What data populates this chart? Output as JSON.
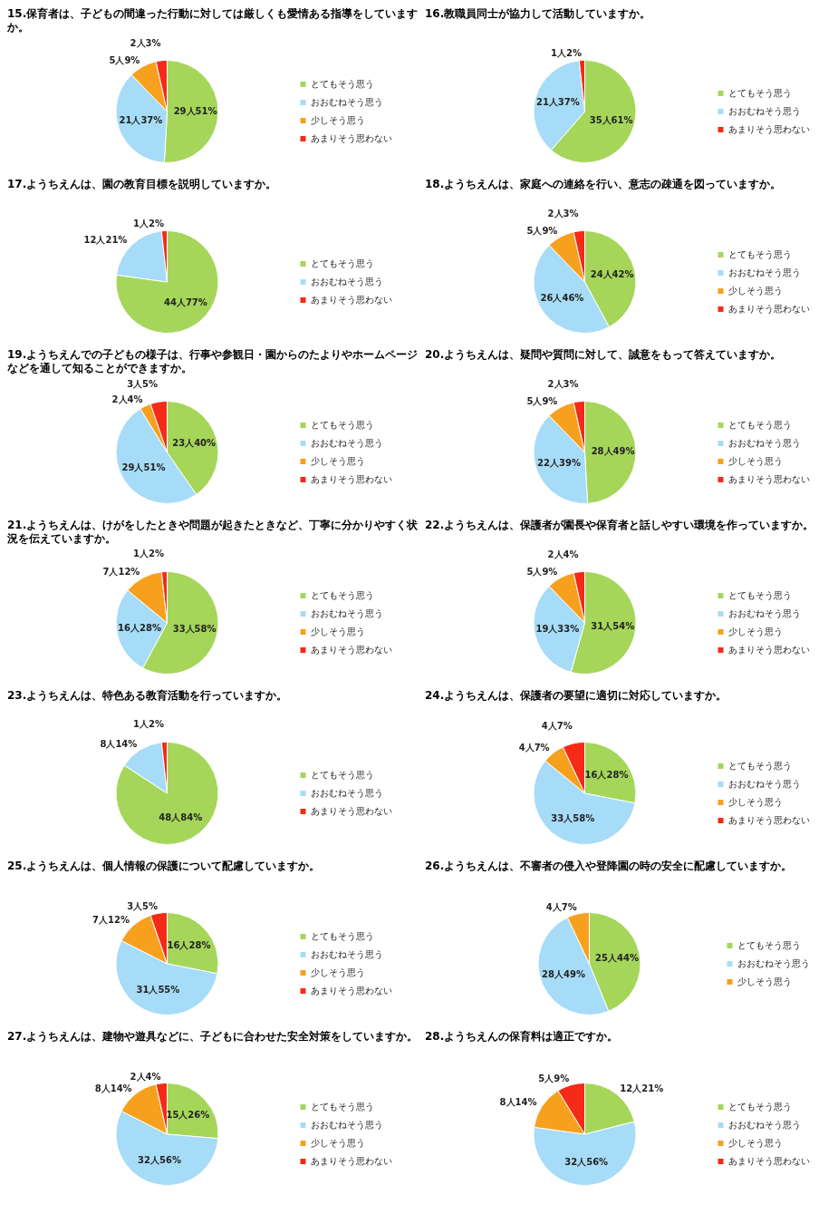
{
  "chart_data": [
    {
      "type": "pie",
      "title": "15.保育者は、子どもの間違った行動に対しては厳しくも愛情ある指導をしていますか。",
      "categories": [
        "とてもそう思う",
        "おおむねそう思う",
        "少しそう思う",
        "あまりそう思わない"
      ],
      "values": [
        29,
        21,
        5,
        2
      ],
      "value_labels": [
        "29人51%",
        "21人37%",
        "5人9%",
        "2人3%"
      ],
      "colors": [
        "#a5d65a",
        "#a6dcf7",
        "#f7a01e",
        "#f52a18"
      ],
      "legend": "right"
    },
    {
      "type": "pie",
      "title": "16.教職員同士が協力して活動していますか。",
      "categories": [
        "とてもそう思う",
        "おおむねそう思う",
        "あまりそう思わない"
      ],
      "values": [
        35,
        21,
        1
      ],
      "value_labels": [
        "35人61%",
        "21人37%",
        "1人2%"
      ],
      "colors": [
        "#a5d65a",
        "#a6dcf7",
        "#f52a18"
      ],
      "legend": "right"
    },
    {
      "type": "pie",
      "title": "17.ようちえんは、園の教育目標を説明していますか。",
      "categories": [
        "とてもそう思う",
        "おおむねそう思う",
        "あまりそう思わない"
      ],
      "values": [
        44,
        12,
        1
      ],
      "value_labels": [
        "44人77%",
        "12人21%",
        "1人2%"
      ],
      "colors": [
        "#a5d65a",
        "#a6dcf7",
        "#f52a18"
      ],
      "legend": "right"
    },
    {
      "type": "pie",
      "title": "18.ようちえんは、家庭への連絡を行い、意志の疎通を図っていますか。",
      "categories": [
        "とてもそう思う",
        "おおむねそう思う",
        "少しそう思う",
        "あまりそう思わない"
      ],
      "values": [
        24,
        26,
        5,
        2
      ],
      "value_labels": [
        "24人42%",
        "26人46%",
        "5人9%",
        "2人3%"
      ],
      "colors": [
        "#a5d65a",
        "#a6dcf7",
        "#f7a01e",
        "#f52a18"
      ],
      "legend": "right"
    },
    {
      "type": "pie",
      "title": "19.ようちえんでの子どもの様子は、行事や参観日・園からのたよりやホームページなどを通して知ることができますか。",
      "categories": [
        "とてもそう思う",
        "おおむねそう思う",
        "少しそう思う",
        "あまりそう思わない"
      ],
      "values": [
        23,
        29,
        2,
        3
      ],
      "value_labels": [
        "23人40%",
        "29人51%",
        "2人4%",
        "3人5%"
      ],
      "colors": [
        "#a5d65a",
        "#a6dcf7",
        "#f7a01e",
        "#f52a18"
      ],
      "legend": "right"
    },
    {
      "type": "pie",
      "title": "20.ようちえんは、疑問や質問に対して、誠意をもって答えていますか。",
      "categories": [
        "とてもそう思う",
        "おおむねそう思う",
        "少しそう思う",
        "あまりそう思わない"
      ],
      "values": [
        28,
        22,
        5,
        2
      ],
      "value_labels": [
        "28人49%",
        "22人39%",
        "5人9%",
        "2人3%"
      ],
      "colors": [
        "#a5d65a",
        "#a6dcf7",
        "#f7a01e",
        "#f52a18"
      ],
      "legend": "right"
    },
    {
      "type": "pie",
      "title": "21.ようちえんは、けがをしたときや問題が起きたときなど、丁寧に分かりやすく状況を伝えていますか。",
      "categories": [
        "とてもそう思う",
        "おおむねそう思う",
        "少しそう思う",
        "あまりそう思わない"
      ],
      "values": [
        33,
        16,
        7,
        1
      ],
      "value_labels": [
        "33人58%",
        "16人28%",
        "7人12%",
        "1人2%"
      ],
      "colors": [
        "#a5d65a",
        "#a6dcf7",
        "#f7a01e",
        "#f52a18"
      ],
      "legend": "right"
    },
    {
      "type": "pie",
      "title": "22.ようちえんは、保護者が園長や保育者と話しやすい環境を作っていますか。",
      "categories": [
        "とてもそう思う",
        "おおむねそう思う",
        "少しそう思う",
        "あまりそう思わない"
      ],
      "values": [
        31,
        19,
        5,
        2
      ],
      "value_labels": [
        "31人54%",
        "19人33%",
        "5人9%",
        "2人4%"
      ],
      "colors": [
        "#a5d65a",
        "#a6dcf7",
        "#f7a01e",
        "#f52a18"
      ],
      "legend": "right"
    },
    {
      "type": "pie",
      "title": "23.ようちえんは、特色ある教育活動を行っていますか。",
      "categories": [
        "とてもそう思う",
        "おおむねそう思う",
        "あまりそう思わない"
      ],
      "values": [
        48,
        8,
        1
      ],
      "value_labels": [
        "48人84%",
        "8人14%",
        "1人2%"
      ],
      "colors": [
        "#a5d65a",
        "#a6dcf7",
        "#f52a18"
      ],
      "legend": "right"
    },
    {
      "type": "pie",
      "title": "24.ようちえんは、保護者の要望に適切に対応していますか。",
      "categories": [
        "とてもそう思う",
        "おおむねそう思う",
        "少しそう思う",
        "あまりそう思わない"
      ],
      "values": [
        16,
        33,
        4,
        4
      ],
      "value_labels": [
        "16人28%",
        "33人58%",
        "4人7%",
        "4人7%"
      ],
      "colors": [
        "#a5d65a",
        "#a6dcf7",
        "#f7a01e",
        "#f52a18"
      ],
      "legend": "right"
    },
    {
      "type": "pie",
      "title": "25.ようちえんは、個人情報の保護について配慮していますか。",
      "categories": [
        "とてもそう思う",
        "おおむねそう思う",
        "少しそう思う",
        "あまりそう思わない"
      ],
      "values": [
        16,
        31,
        7,
        3
      ],
      "value_labels": [
        "16人28%",
        "31人55%",
        "7人12%",
        "3人5%"
      ],
      "colors": [
        "#a5d65a",
        "#a6dcf7",
        "#f7a01e",
        "#f52a18"
      ],
      "legend": "right"
    },
    {
      "type": "pie",
      "title": "26.ようちえんは、不審者の侵入や登降園の時の安全に配慮していますか。",
      "categories": [
        "とてもそう思う",
        "おおむねそう思う",
        "少しそう思う"
      ],
      "values": [
        25,
        28,
        4
      ],
      "value_labels": [
        "25人44%",
        "28人49%",
        "4人7%"
      ],
      "colors": [
        "#a5d65a",
        "#a6dcf7",
        "#f7a01e"
      ],
      "legend": "right"
    },
    {
      "type": "pie",
      "title": "27.ようちえんは、建物や遊具などに、子どもに合わせた安全対策をしていますか。",
      "categories": [
        "とてもそう思う",
        "おおむねそう思う",
        "少しそう思う",
        "あまりそう思わない"
      ],
      "values": [
        15,
        32,
        8,
        2
      ],
      "value_labels": [
        "15人26%",
        "32人56%",
        "8人14%",
        "2人4%"
      ],
      "colors": [
        "#a5d65a",
        "#a6dcf7",
        "#f7a01e",
        "#f52a18"
      ],
      "legend": "right"
    },
    {
      "type": "pie",
      "title": "28.ようちえんの保育料は適正ですか。",
      "categories": [
        "とてもそう思う",
        "おおむねそう思う",
        "少しそう思う",
        "あまりそう思わない"
      ],
      "values": [
        12,
        32,
        8,
        5
      ],
      "value_labels": [
        "12人21%",
        "32人56%",
        "8人14%",
        "5人9%"
      ],
      "colors": [
        "#a5d65a",
        "#a6dcf7",
        "#f7a01e",
        "#f52a18"
      ],
      "legend": "right"
    }
  ]
}
